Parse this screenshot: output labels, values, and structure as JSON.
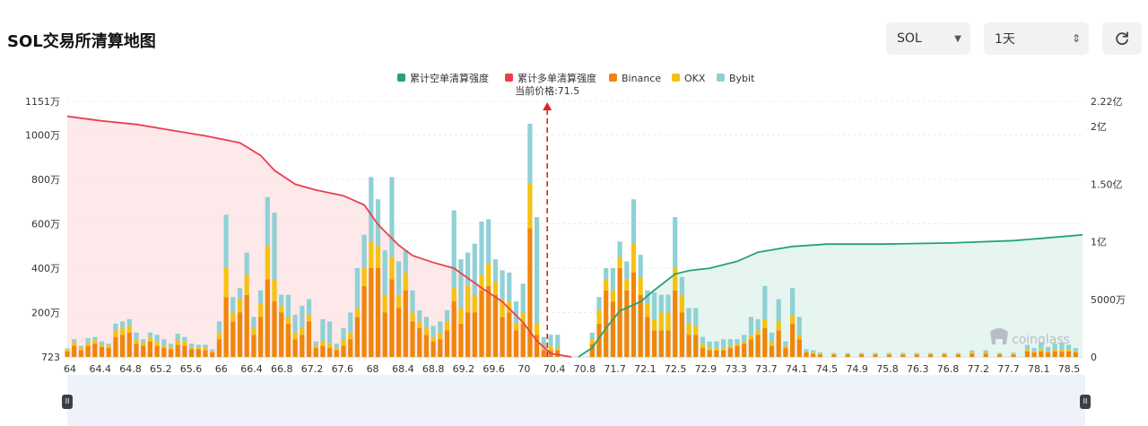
{
  "header": {
    "title": "SOL交易所清算地图",
    "symbol_select": "SOL",
    "interval_select": "1天"
  },
  "icons": {
    "refresh": "refresh-icon",
    "dropdown": "chevron-down-icon",
    "updown": "updown-icon"
  },
  "watermark": "coinglass",
  "chart_data": {
    "type": "bar",
    "legend": [
      {
        "name": "累计空单清算强度",
        "color": "#26a17b"
      },
      {
        "name": "累计多单清算强度",
        "color": "#e8414e"
      },
      {
        "name": "Binance",
        "color": "#f0860b"
      },
      {
        "name": "OKX",
        "color": "#f5c211"
      },
      {
        "name": "Bybit",
        "color": "#8fd1d4"
      }
    ],
    "current_price_label": "当前价格:71.5",
    "current_price": 71.5,
    "x_range": [
      64,
      78.7
    ],
    "x_ticks": [
      "64",
      "64.4",
      "64.8",
      "65.2",
      "65.6",
      "66",
      "66.4",
      "66.8",
      "67.2",
      "67.6",
      "68",
      "68.4",
      "68.8",
      "69.2",
      "69.6",
      "70",
      "70.4",
      "70.8",
      "71.7",
      "72.1",
      "72.5",
      "72.9",
      "73.3",
      "73.7",
      "74.1",
      "74.5",
      "74.9",
      "75.8",
      "76.3",
      "76.8",
      "77.2",
      "77.7",
      "78.1",
      "78.5"
    ],
    "y_left_ticks": [
      "723",
      "200万",
      "400万",
      "600万",
      "800万",
      "1000万",
      "1151万"
    ],
    "y_left_values": [
      723,
      2000000,
      4000000,
      6000000,
      8000000,
      10000000,
      11510000
    ],
    "y_left_range": [
      723,
      11510000
    ],
    "y_right_ticks": [
      "0",
      "5000万",
      "1亿",
      "1.50亿",
      "2亿",
      "2.22亿"
    ],
    "y_right_values": [
      0,
      50000000,
      100000000,
      150000000,
      200000000,
      222000000
    ],
    "y_right_range": [
      0,
      222000000
    ],
    "bars": [
      [
        64.0,
        0.25,
        0.08,
        0.05
      ],
      [
        64.1,
        0.5,
        0.15,
        0.15
      ],
      [
        64.2,
        0.3,
        0.1,
        0.1
      ],
      [
        64.3,
        0.5,
        0.15,
        0.2
      ],
      [
        64.4,
        0.6,
        0.15,
        0.15
      ],
      [
        64.5,
        0.45,
        0.1,
        0.15
      ],
      [
        64.6,
        0.4,
        0.1,
        0.1
      ],
      [
        64.7,
        0.9,
        0.3,
        0.3
      ],
      [
        64.8,
        1.0,
        0.3,
        0.3
      ],
      [
        64.9,
        1.1,
        0.3,
        0.3
      ],
      [
        65.0,
        0.6,
        0.2,
        0.3
      ],
      [
        65.1,
        0.5,
        0.15,
        0.15
      ],
      [
        65.2,
        0.7,
        0.2,
        0.2
      ],
      [
        65.3,
        0.5,
        0.2,
        0.3
      ],
      [
        65.4,
        0.4,
        0.1,
        0.3
      ],
      [
        65.5,
        0.35,
        0.1,
        0.15
      ],
      [
        65.6,
        0.55,
        0.2,
        0.3
      ],
      [
        65.7,
        0.5,
        0.2,
        0.2
      ],
      [
        65.8,
        0.35,
        0.1,
        0.15
      ],
      [
        65.9,
        0.35,
        0.1,
        0.1
      ],
      [
        66.0,
        0.3,
        0.1,
        0.15
      ],
      [
        66.1,
        0.2,
        0.05,
        0.1
      ],
      [
        66.2,
        0.8,
        0.3,
        0.5
      ],
      [
        66.3,
        2.7,
        1.3,
        2.4
      ],
      [
        66.4,
        1.6,
        0.4,
        0.7
      ],
      [
        66.5,
        2.0,
        0.6,
        0.5
      ],
      [
        66.6,
        2.8,
        0.9,
        1.0
      ],
      [
        66.7,
        1.0,
        0.3,
        0.5
      ],
      [
        66.8,
        1.8,
        0.6,
        0.6
      ],
      [
        66.9,
        3.5,
        1.5,
        2.2
      ],
      [
        67.0,
        2.5,
        1.0,
        3.0
      ],
      [
        67.1,
        2.0,
        0.3,
        0.5
      ],
      [
        67.2,
        1.5,
        0.3,
        1.0
      ],
      [
        67.3,
        0.8,
        0.3,
        0.8
      ],
      [
        67.4,
        1.0,
        0.3,
        1.0
      ],
      [
        67.5,
        1.6,
        0.3,
        0.7
      ],
      [
        67.6,
        0.4,
        0.1,
        0.2
      ],
      [
        67.7,
        0.5,
        0.2,
        1.0
      ],
      [
        67.8,
        0.4,
        0.2,
        1.0
      ],
      [
        67.9,
        0.3,
        0.1,
        0.2
      ],
      [
        68.0,
        0.5,
        0.3,
        0.5
      ],
      [
        68.1,
        0.8,
        0.3,
        0.9
      ],
      [
        68.2,
        1.8,
        0.4,
        1.8
      ],
      [
        68.3,
        3.2,
        0.8,
        1.5
      ],
      [
        68.4,
        4.0,
        1.2,
        2.9
      ],
      [
        68.5,
        4.0,
        1.0,
        2.1
      ],
      [
        68.6,
        2.0,
        0.8,
        2.0
      ],
      [
        68.7,
        3.5,
        1.0,
        3.6
      ],
      [
        68.8,
        2.2,
        0.6,
        1.5
      ],
      [
        68.9,
        3.0,
        0.8,
        1.0
      ],
      [
        69.0,
        1.6,
        0.4,
        1.0
      ],
      [
        69.1,
        1.3,
        0.3,
        0.5
      ],
      [
        69.2,
        1.0,
        0.3,
        0.5
      ],
      [
        69.3,
        0.7,
        0.2,
        0.5
      ],
      [
        69.4,
        0.8,
        0.3,
        0.5
      ],
      [
        69.5,
        1.2,
        0.4,
        0.5
      ],
      [
        69.6,
        2.5,
        0.6,
        3.5
      ],
      [
        69.7,
        1.5,
        0.7,
        2.2
      ],
      [
        69.8,
        2.0,
        1.2,
        1.5
      ],
      [
        69.9,
        2.0,
        0.8,
        2.3
      ],
      [
        70.0,
        3.0,
        0.7,
        2.4
      ],
      [
        70.1,
        3.2,
        1.0,
        2.0
      ],
      [
        70.2,
        2.8,
        0.6,
        1.0
      ],
      [
        70.3,
        1.8,
        0.8,
        1.3
      ],
      [
        70.4,
        2.0,
        0.5,
        1.3
      ],
      [
        70.5,
        1.2,
        0.3,
        1.0
      ],
      [
        70.6,
        1.5,
        0.5,
        1.3
      ],
      [
        70.7,
        5.8,
        2.0,
        2.7
      ],
      [
        70.8,
        1.0,
        0.5,
        4.8
      ],
      [
        70.9,
        0.3,
        0.1,
        0.5
      ],
      [
        71.0,
        0.3,
        0.2,
        0.5
      ],
      [
        71.1,
        0.3,
        0.1,
        0.6
      ],
      [
        71.6,
        0.6,
        0.2,
        0.3
      ],
      [
        71.7,
        1.5,
        0.6,
        0.6
      ],
      [
        71.8,
        3.0,
        0.5,
        0.5
      ],
      [
        71.9,
        2.5,
        0.5,
        1.0
      ],
      [
        72.0,
        4.0,
        0.5,
        0.7
      ],
      [
        72.1,
        3.0,
        0.5,
        0.8
      ],
      [
        72.2,
        3.8,
        1.3,
        2.0
      ],
      [
        72.3,
        2.8,
        0.8,
        1.0
      ],
      [
        72.4,
        1.8,
        0.6,
        0.6
      ],
      [
        72.5,
        1.2,
        0.5,
        1.2
      ],
      [
        72.6,
        1.2,
        0.8,
        0.8
      ],
      [
        72.7,
        1.2,
        0.8,
        0.8
      ],
      [
        72.8,
        3.0,
        1.0,
        2.3
      ],
      [
        72.9,
        2.0,
        0.8,
        0.8
      ],
      [
        73.0,
        1.0,
        0.5,
        0.7
      ],
      [
        73.1,
        1.0,
        0.4,
        0.8
      ],
      [
        73.2,
        0.4,
        0.2,
        0.3
      ],
      [
        73.3,
        0.3,
        0.1,
        0.3
      ],
      [
        73.4,
        0.3,
        0.1,
        0.3
      ],
      [
        73.5,
        0.3,
        0.1,
        0.4
      ],
      [
        73.6,
        0.4,
        0.1,
        0.3
      ],
      [
        73.7,
        0.5,
        0.1,
        0.2
      ],
      [
        73.8,
        0.6,
        0.1,
        0.3
      ],
      [
        73.9,
        0.8,
        0.2,
        0.8
      ],
      [
        74.0,
        1.0,
        0.2,
        0.5
      ],
      [
        74.1,
        1.3,
        0.4,
        1.5
      ],
      [
        74.2,
        0.5,
        0.2,
        0.4
      ],
      [
        74.3,
        1.2,
        0.4,
        1.0
      ],
      [
        74.4,
        0.4,
        0.1,
        0.2
      ],
      [
        74.5,
        1.5,
        0.4,
        1.2
      ],
      [
        74.6,
        0.8,
        0.2,
        0.8
      ],
      [
        74.7,
        0.2,
        0.05,
        0.1
      ],
      [
        74.8,
        0.15,
        0.05,
        0.1
      ],
      [
        74.9,
        0.1,
        0.05,
        0.05
      ],
      [
        75.1,
        0.1,
        0.03,
        0.05
      ],
      [
        75.3,
        0.1,
        0.03,
        0.05
      ],
      [
        75.5,
        0.1,
        0.03,
        0.05
      ],
      [
        75.7,
        0.1,
        0.03,
        0.05
      ],
      [
        75.9,
        0.1,
        0.03,
        0.05
      ],
      [
        76.1,
        0.1,
        0.03,
        0.05
      ],
      [
        76.3,
        0.1,
        0.03,
        0.05
      ],
      [
        76.5,
        0.1,
        0.03,
        0.05
      ],
      [
        76.7,
        0.1,
        0.03,
        0.05
      ],
      [
        76.9,
        0.1,
        0.03,
        0.05
      ],
      [
        77.1,
        0.15,
        0.05,
        0.1
      ],
      [
        77.3,
        0.15,
        0.05,
        0.1
      ],
      [
        77.5,
        0.1,
        0.03,
        0.05
      ],
      [
        77.7,
        0.1,
        0.05,
        0.05
      ],
      [
        77.9,
        0.25,
        0.1,
        0.2
      ],
      [
        78.0,
        0.2,
        0.05,
        0.15
      ],
      [
        78.1,
        0.25,
        0.1,
        0.3
      ],
      [
        78.2,
        0.2,
        0.05,
        0.2
      ],
      [
        78.3,
        0.25,
        0.1,
        0.25
      ],
      [
        78.4,
        0.25,
        0.1,
        0.3
      ],
      [
        78.5,
        0.25,
        0.1,
        0.2
      ],
      [
        78.6,
        0.2,
        0.05,
        0.15
      ]
    ],
    "bars_units": "millions (Binance, OKX, Bybit stacked)",
    "cumulative_long": [
      [
        64.0,
        209
      ],
      [
        64.5,
        205
      ],
      [
        65.0,
        202
      ],
      [
        65.5,
        197
      ],
      [
        66.0,
        192
      ],
      [
        66.5,
        186
      ],
      [
        66.8,
        175
      ],
      [
        67.0,
        162
      ],
      [
        67.3,
        150
      ],
      [
        67.6,
        145
      ],
      [
        68.0,
        140
      ],
      [
        68.3,
        132
      ],
      [
        68.5,
        115
      ],
      [
        68.8,
        97
      ],
      [
        69.0,
        88
      ],
      [
        69.3,
        82
      ],
      [
        69.6,
        77
      ],
      [
        70.0,
        60
      ],
      [
        70.3,
        48
      ],
      [
        70.6,
        30
      ],
      [
        70.8,
        14
      ],
      [
        71.0,
        3
      ],
      [
        71.3,
        0
      ]
    ],
    "cumulative_short": [
      [
        71.4,
        0
      ],
      [
        71.6,
        8
      ],
      [
        71.8,
        25
      ],
      [
        72.0,
        40
      ],
      [
        72.3,
        48
      ],
      [
        72.5,
        58
      ],
      [
        72.8,
        72
      ],
      [
        73.0,
        75
      ],
      [
        73.3,
        77
      ],
      [
        73.7,
        83
      ],
      [
        74.0,
        91
      ],
      [
        74.2,
        93
      ],
      [
        74.5,
        96
      ],
      [
        75.0,
        98
      ],
      [
        75.8,
        98
      ],
      [
        76.8,
        99
      ],
      [
        77.7,
        101
      ],
      [
        78.1,
        103
      ],
      [
        78.5,
        105
      ],
      [
        78.7,
        106
      ]
    ],
    "cumulative_units": "millions (right axis)",
    "grid": true,
    "legend_position": "top-center"
  }
}
